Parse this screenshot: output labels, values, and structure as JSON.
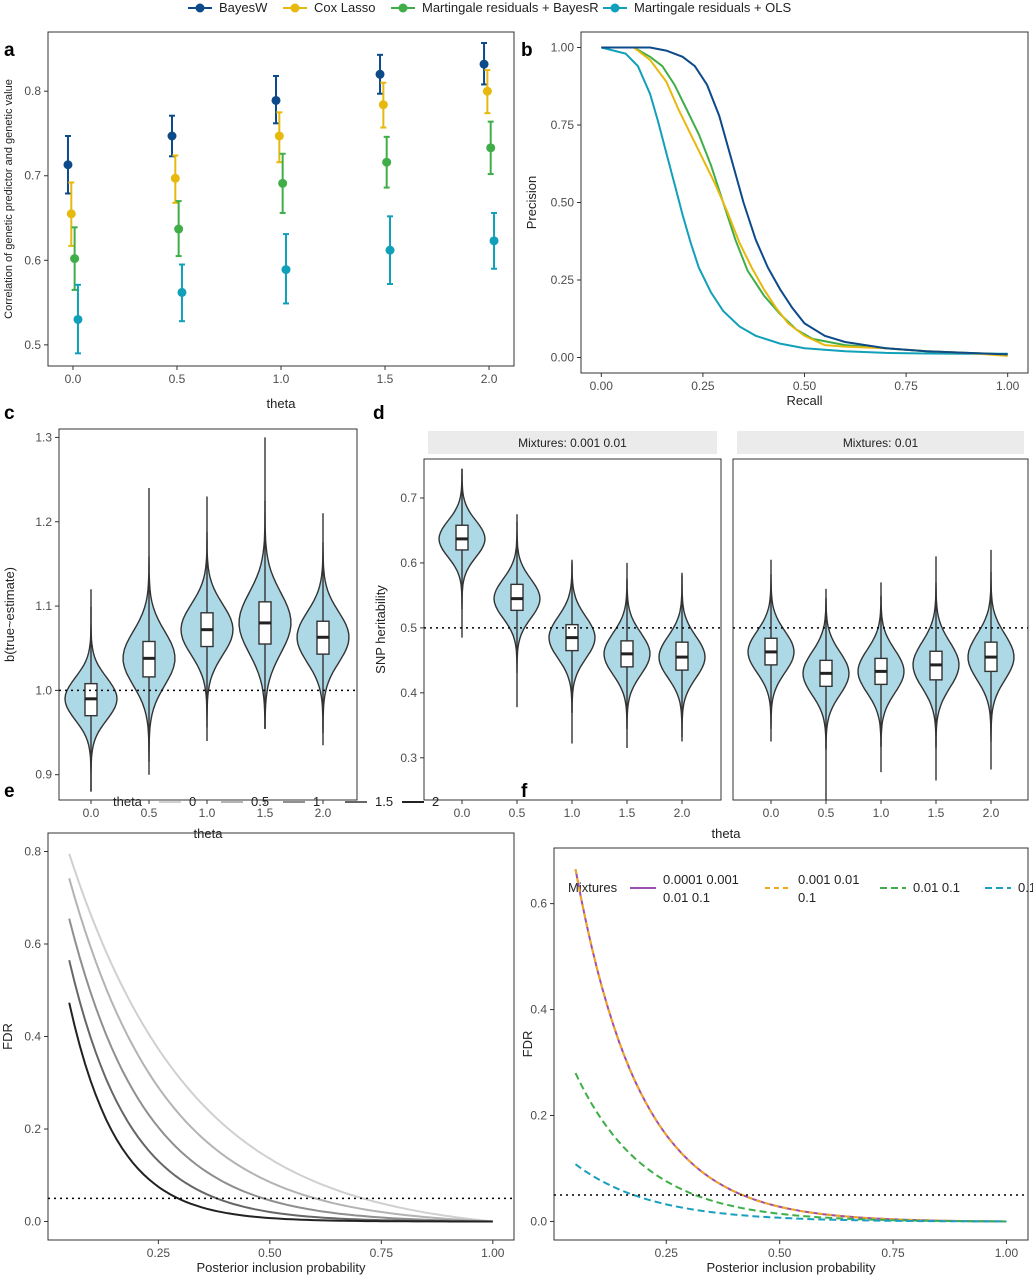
{
  "legend_top": [
    {
      "name": "BayesW",
      "color": "#0c4a8a"
    },
    {
      "name": "Cox Lasso",
      "color": "#e7b90f"
    },
    {
      "name": "Martingale residuals + BayesR",
      "color": "#3fae49"
    },
    {
      "name": "Martingale residuals + OLS",
      "color": "#10a0b9"
    }
  ],
  "chart_data": [
    {
      "panel": "a",
      "type": "scatter",
      "xlabel": "theta",
      "ylabel": "Correlation of genetic predictor and genetic value",
      "xlim": [
        -0.12,
        2.12
      ],
      "ylim": [
        0.475,
        0.87
      ],
      "xticks": [
        0,
        0.5,
        1,
        1.5,
        2
      ],
      "xticklabels": [
        "0.0",
        "0.5",
        "1.0",
        "1.5",
        "2.0"
      ],
      "yticks": [
        0.5,
        0.6,
        0.7,
        0.8
      ],
      "yticklabels": [
        "0.5",
        "0.6",
        "0.7",
        "0.8"
      ],
      "x": [
        0,
        0.5,
        1,
        1.5,
        2
      ],
      "series": [
        {
          "name": "BayesW",
          "offset": -0.024,
          "values": [
            0.713,
            0.747,
            0.789,
            0.82,
            0.832
          ],
          "lower": [
            0.679,
            0.723,
            0.762,
            0.797,
            0.808
          ],
          "upper": [
            0.747,
            0.771,
            0.818,
            0.843,
            0.857
          ]
        },
        {
          "name": "Cox Lasso",
          "offset": -0.008,
          "values": [
            0.655,
            0.697,
            0.747,
            0.784,
            0.8
          ],
          "lower": [
            0.617,
            0.668,
            0.716,
            0.757,
            0.774
          ],
          "upper": [
            0.692,
            0.724,
            0.775,
            0.81,
            0.825
          ]
        },
        {
          "name": "Martingale residuals + BayesR",
          "offset": 0.008,
          "values": [
            0.602,
            0.637,
            0.691,
            0.716,
            0.733
          ],
          "lower": [
            0.565,
            0.605,
            0.656,
            0.686,
            0.702
          ],
          "upper": [
            0.639,
            0.67,
            0.726,
            0.746,
            0.764
          ]
        },
        {
          "name": "Martingale residuals + OLS",
          "offset": 0.024,
          "values": [
            0.53,
            0.562,
            0.589,
            0.612,
            0.623
          ],
          "lower": [
            0.49,
            0.528,
            0.549,
            0.572,
            0.59
          ],
          "upper": [
            0.571,
            0.595,
            0.631,
            0.652,
            0.656
          ]
        }
      ]
    },
    {
      "panel": "b",
      "type": "line",
      "xlabel": "Recall",
      "ylabel": "Precision",
      "xlim": [
        -0.05,
        1.05
      ],
      "ylim": [
        -0.05,
        1.05
      ],
      "xticks": [
        0,
        0.25,
        0.5,
        0.75,
        1
      ],
      "xticklabels": [
        "0.00",
        "0.25",
        "0.50",
        "0.75",
        "1.00"
      ],
      "yticks": [
        0,
        0.25,
        0.5,
        0.75,
        1
      ],
      "yticklabels": [
        "0.00",
        "0.25",
        "0.50",
        "0.75",
        "1.00"
      ],
      "series": [
        {
          "name": "BayesW",
          "points": [
            [
              0,
              1
            ],
            [
              0.1,
              1
            ],
            [
              0.12,
              1
            ],
            [
              0.16,
              0.99
            ],
            [
              0.2,
              0.97
            ],
            [
              0.23,
              0.94
            ],
            [
              0.26,
              0.88
            ],
            [
              0.29,
              0.78
            ],
            [
              0.32,
              0.64
            ],
            [
              0.35,
              0.5
            ],
            [
              0.38,
              0.38
            ],
            [
              0.41,
              0.29
            ],
            [
              0.44,
              0.22
            ],
            [
              0.47,
              0.16
            ],
            [
              0.5,
              0.11
            ],
            [
              0.55,
              0.07
            ],
            [
              0.6,
              0.05
            ],
            [
              0.7,
              0.03
            ],
            [
              0.8,
              0.02
            ],
            [
              0.9,
              0.015
            ],
            [
              1,
              0.01
            ]
          ]
        },
        {
          "name": "Cox Lasso",
          "points": [
            [
              0,
              1
            ],
            [
              0.08,
              1
            ],
            [
              0.12,
              0.96
            ],
            [
              0.16,
              0.89
            ],
            [
              0.19,
              0.8
            ],
            [
              0.22,
              0.72
            ],
            [
              0.25,
              0.64
            ],
            [
              0.28,
              0.56
            ],
            [
              0.31,
              0.47
            ],
            [
              0.34,
              0.37
            ],
            [
              0.37,
              0.29
            ],
            [
              0.4,
              0.22
            ],
            [
              0.43,
              0.16
            ],
            [
              0.46,
              0.11
            ],
            [
              0.5,
              0.07
            ],
            [
              0.55,
              0.04
            ],
            [
              0.6,
              0.035
            ],
            [
              0.7,
              0.03
            ],
            [
              0.8,
              0.02
            ],
            [
              0.9,
              0.015
            ],
            [
              1,
              0.005
            ]
          ]
        },
        {
          "name": "Martingale residuals + BayesR",
          "points": [
            [
              0,
              1
            ],
            [
              0.08,
              1
            ],
            [
              0.12,
              0.97
            ],
            [
              0.15,
              0.94
            ],
            [
              0.18,
              0.88
            ],
            [
              0.21,
              0.8
            ],
            [
              0.24,
              0.72
            ],
            [
              0.27,
              0.62
            ],
            [
              0.3,
              0.5
            ],
            [
              0.33,
              0.38
            ],
            [
              0.36,
              0.28
            ],
            [
              0.4,
              0.2
            ],
            [
              0.44,
              0.14
            ],
            [
              0.48,
              0.09
            ],
            [
              0.52,
              0.06
            ],
            [
              0.6,
              0.04
            ],
            [
              0.7,
              0.03
            ],
            [
              0.8,
              0.02
            ],
            [
              0.9,
              0.015
            ],
            [
              1,
              0.01
            ]
          ]
        },
        {
          "name": "Martingale residuals + OLS",
          "points": [
            [
              0,
              1
            ],
            [
              0.06,
              0.98
            ],
            [
              0.09,
              0.94
            ],
            [
              0.12,
              0.85
            ],
            [
              0.14,
              0.76
            ],
            [
              0.16,
              0.66
            ],
            [
              0.18,
              0.56
            ],
            [
              0.2,
              0.46
            ],
            [
              0.22,
              0.37
            ],
            [
              0.24,
              0.29
            ],
            [
              0.27,
              0.21
            ],
            [
              0.3,
              0.15
            ],
            [
              0.34,
              0.1
            ],
            [
              0.38,
              0.07
            ],
            [
              0.44,
              0.045
            ],
            [
              0.5,
              0.03
            ],
            [
              0.6,
              0.02
            ],
            [
              0.7,
              0.015
            ],
            [
              0.8,
              0.013
            ],
            [
              0.9,
              0.012
            ],
            [
              1,
              0.012
            ]
          ]
        }
      ]
    },
    {
      "panel": "c",
      "type": "violin",
      "xlabel": "theta",
      "ylabel": "b(true~estimate)",
      "ylim": [
        0.87,
        1.31
      ],
      "categories": [
        "0.0",
        "0.5",
        "1.0",
        "1.5",
        "2.0"
      ],
      "yticks": [
        0.9,
        1.0,
        1.1,
        1.2,
        1.3
      ],
      "yticklabels": [
        "0.9",
        "1.0",
        "1.1",
        "1.2",
        "1.3"
      ],
      "reference_line": 1.0,
      "groups": [
        {
          "min": 0.88,
          "q1": 0.97,
          "median": 0.99,
          "q3": 1.008,
          "max": 1.12,
          "sd": 0.025
        },
        {
          "min": 0.9,
          "q1": 1.016,
          "median": 1.038,
          "q3": 1.058,
          "max": 1.24,
          "sd": 0.032
        },
        {
          "min": 0.94,
          "q1": 1.052,
          "median": 1.072,
          "q3": 1.092,
          "max": 1.23,
          "sd": 0.03
        },
        {
          "min": 0.955,
          "q1": 1.055,
          "median": 1.08,
          "q3": 1.105,
          "max": 1.3,
          "sd": 0.036
        },
        {
          "min": 0.935,
          "q1": 1.043,
          "median": 1.063,
          "q3": 1.082,
          "max": 1.21,
          "sd": 0.03
        }
      ]
    },
    {
      "panel": "d",
      "type": "violin",
      "xlabel": "theta",
      "ylabel": "SNP heritability",
      "ylim": [
        0.235,
        0.76
      ],
      "yticks": [
        0.3,
        0.4,
        0.5,
        0.6,
        0.7
      ],
      "yticklabels": [
        "0.3",
        "0.4",
        "0.5",
        "0.6",
        "0.7"
      ],
      "reference_line": 0.5,
      "facets": [
        {
          "title": "Mixtures: 0.001 0.01",
          "categories": [
            "0.0",
            "0.5",
            "1.0",
            "1.5",
            "2.0"
          ],
          "groups": [
            {
              "min": 0.485,
              "q1": 0.62,
              "median": 0.637,
              "q3": 0.658,
              "max": 0.745,
              "sd": 0.028
            },
            {
              "min": 0.378,
              "q1": 0.527,
              "median": 0.545,
              "q3": 0.567,
              "max": 0.675,
              "sd": 0.03
            },
            {
              "min": 0.322,
              "q1": 0.465,
              "median": 0.485,
              "q3": 0.505,
              "max": 0.605,
              "sd": 0.032
            },
            {
              "min": 0.315,
              "q1": 0.44,
              "median": 0.46,
              "q3": 0.48,
              "max": 0.6,
              "sd": 0.032
            },
            {
              "min": 0.325,
              "q1": 0.435,
              "median": 0.455,
              "q3": 0.478,
              "max": 0.585,
              "sd": 0.032
            }
          ]
        },
        {
          "title": "Mixtures: 0.01",
          "categories": [
            "0.0",
            "0.5",
            "1.0",
            "1.5",
            "2.0"
          ],
          "groups": [
            {
              "min": 0.325,
              "q1": 0.443,
              "median": 0.463,
              "q3": 0.484,
              "max": 0.605,
              "sd": 0.032
            },
            {
              "min": 0.235,
              "q1": 0.41,
              "median": 0.43,
              "q3": 0.45,
              "max": 0.56,
              "sd": 0.033
            },
            {
              "min": 0.278,
              "q1": 0.413,
              "median": 0.433,
              "q3": 0.453,
              "max": 0.57,
              "sd": 0.033
            },
            {
              "min": 0.265,
              "q1": 0.42,
              "median": 0.443,
              "q3": 0.464,
              "max": 0.61,
              "sd": 0.035
            },
            {
              "min": 0.282,
              "q1": 0.433,
              "median": 0.455,
              "q3": 0.478,
              "max": 0.62,
              "sd": 0.035
            }
          ]
        }
      ]
    },
    {
      "panel": "e",
      "type": "line",
      "xlabel": "Posterior inclusion probability",
      "ylabel": "FDR",
      "legend_title": "theta",
      "xlim": [
        0.0025,
        1.0475
      ],
      "ylim": [
        -0.04,
        0.84
      ],
      "xticks": [
        0.25,
        0.5,
        0.75,
        1
      ],
      "xticklabels": [
        "0.25",
        "0.50",
        "0.75",
        "1.00"
      ],
      "yticks": [
        0,
        0.2,
        0.4,
        0.6,
        0.8
      ],
      "yticklabels": [
        "0.0",
        "0.2",
        "0.4",
        "0.6",
        "0.8"
      ],
      "reference_line": 0.05,
      "series": [
        {
          "name": "0",
          "color": "#d0d0d0",
          "start": 0.795,
          "decay": 3.6
        },
        {
          "name": "0.5",
          "color": "#b3b3b3",
          "start": 0.742,
          "decay": 4.6
        },
        {
          "name": "1",
          "color": "#8f8f8f",
          "start": 0.655,
          "decay": 5.8
        },
        {
          "name": "1.5",
          "color": "#666666",
          "start": 0.565,
          "decay": 7.3
        },
        {
          "name": "2",
          "color": "#222222",
          "start": 0.473,
          "decay": 9.2
        }
      ]
    },
    {
      "panel": "f",
      "type": "line",
      "xlabel": "Posterior inclusion probability",
      "ylabel": "FDR",
      "legend_title": "Mixtures",
      "xlim": [
        0.0025,
        1.0475
      ],
      "ylim": [
        -0.035,
        0.705
      ],
      "xticks": [
        0.25,
        0.5,
        0.75,
        1
      ],
      "xticklabels": [
        "0.25",
        "0.50",
        "0.75",
        "1.00"
      ],
      "yticks": [
        0,
        0.2,
        0.4,
        0.6
      ],
      "yticklabels": [
        "0.0",
        "0.2",
        "0.4",
        "0.6"
      ],
      "reference_line": 0.05,
      "series": [
        {
          "name": "0.0001 0.001 0.01 0.1",
          "legend_lines": [
            "0.0001 0.001",
            "0.01 0.1"
          ],
          "color": "#9b4fb0",
          "dash": "",
          "start": 0.665,
          "decay": 7.0
        },
        {
          "name": "0.001 0.01 0.1",
          "legend_lines": [
            "0.001 0.01",
            "0.1"
          ],
          "color": "#f0a81e",
          "dash": "5,4",
          "start": 0.665,
          "decay": 7.0
        },
        {
          "name": "0.01 0.1",
          "legend_lines": [
            "0.01 0.1"
          ],
          "color": "#3fae49",
          "dash": "7,4",
          "start": 0.28,
          "decay": 6.5
        },
        {
          "name": "0.1",
          "legend_lines": [
            "0.1"
          ],
          "color": "#1b9fc0",
          "dash": "7,4",
          "start": 0.108,
          "decay": 6.0
        }
      ]
    }
  ],
  "panel_labels": [
    "a",
    "b",
    "c",
    "d",
    "e",
    "f"
  ],
  "violin_fill": "#add8e6"
}
